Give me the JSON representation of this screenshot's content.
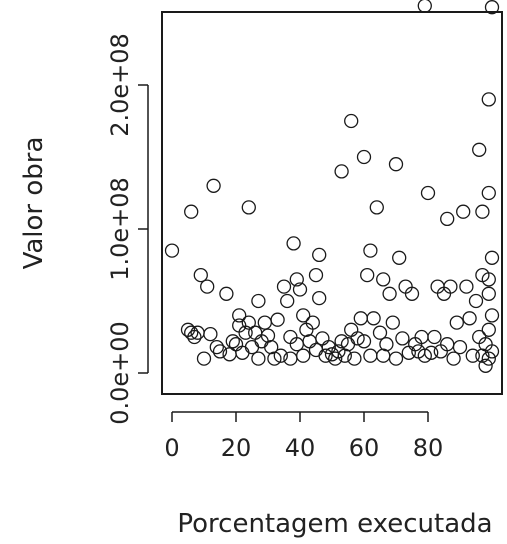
{
  "chart_data": {
    "type": "scatter",
    "title": "",
    "xlabel": "Porcentagem executada",
    "ylabel": "Valor obra",
    "xlim": [
      0,
      100
    ],
    "ylim": [
      0,
      270000000
    ],
    "x_ticks": [
      0,
      20,
      40,
      60,
      80
    ],
    "x_tick_labels": [
      "0",
      "20",
      "40",
      "60",
      "80"
    ],
    "y_ticks": [
      0,
      100000000,
      200000000
    ],
    "y_tick_labels": [
      "0.0e+00",
      "1.0e+08",
      "2.0e+08"
    ],
    "grid": false,
    "legend": "none",
    "marker": "open-circle",
    "colors": {
      "marker": "#1a1a1a",
      "axes": "#1a1a1a",
      "background": "#ffffff"
    },
    "points": [
      [
        0,
        85000000
      ],
      [
        5,
        30000000
      ],
      [
        6,
        28000000
      ],
      [
        6,
        112000000
      ],
      [
        7,
        25000000
      ],
      [
        8,
        28000000
      ],
      [
        9,
        68000000
      ],
      [
        10,
        10000000
      ],
      [
        11,
        60000000
      ],
      [
        12,
        27000000
      ],
      [
        13,
        130000000
      ],
      [
        14,
        18000000
      ],
      [
        15,
        15000000
      ],
      [
        17,
        55000000
      ],
      [
        18,
        13000000
      ],
      [
        19,
        22000000
      ],
      [
        20,
        20000000
      ],
      [
        21,
        40000000
      ],
      [
        21,
        33000000
      ],
      [
        22,
        14000000
      ],
      [
        23,
        28000000
      ],
      [
        24,
        35000000
      ],
      [
        24,
        115000000
      ],
      [
        25,
        18000000
      ],
      [
        26,
        28000000
      ],
      [
        27,
        50000000
      ],
      [
        27,
        10000000
      ],
      [
        28,
        22000000
      ],
      [
        29,
        35000000
      ],
      [
        30,
        26000000
      ],
      [
        31,
        18000000
      ],
      [
        32,
        10000000
      ],
      [
        33,
        37000000
      ],
      [
        34,
        12000000
      ],
      [
        35,
        60000000
      ],
      [
        36,
        50000000
      ],
      [
        37,
        25000000
      ],
      [
        37,
        10000000
      ],
      [
        38,
        90000000
      ],
      [
        39,
        20000000
      ],
      [
        39,
        65000000
      ],
      [
        40,
        58000000
      ],
      [
        41,
        40000000
      ],
      [
        41,
        12000000
      ],
      [
        42,
        30000000
      ],
      [
        43,
        22000000
      ],
      [
        44,
        35000000
      ],
      [
        45,
        68000000
      ],
      [
        45,
        16000000
      ],
      [
        46,
        52000000
      ],
      [
        46,
        82000000
      ],
      [
        47,
        24000000
      ],
      [
        48,
        12000000
      ],
      [
        49,
        18000000
      ],
      [
        50,
        13000000
      ],
      [
        51,
        10000000
      ],
      [
        52,
        15000000
      ],
      [
        53,
        22000000
      ],
      [
        53,
        140000000
      ],
      [
        54,
        12000000
      ],
      [
        55,
        20000000
      ],
      [
        56,
        30000000
      ],
      [
        56,
        175000000
      ],
      [
        57,
        10000000
      ],
      [
        58,
        24000000
      ],
      [
        59,
        38000000
      ],
      [
        60,
        150000000
      ],
      [
        60,
        22000000
      ],
      [
        61,
        68000000
      ],
      [
        62,
        85000000
      ],
      [
        62,
        12000000
      ],
      [
        63,
        38000000
      ],
      [
        64,
        115000000
      ],
      [
        65,
        28000000
      ],
      [
        66,
        65000000
      ],
      [
        66,
        12000000
      ],
      [
        67,
        20000000
      ],
      [
        68,
        55000000
      ],
      [
        69,
        35000000
      ],
      [
        70,
        145000000
      ],
      [
        70,
        10000000
      ],
      [
        71,
        80000000
      ],
      [
        72,
        24000000
      ],
      [
        73,
        60000000
      ],
      [
        74,
        14000000
      ],
      [
        75,
        55000000
      ],
      [
        76,
        20000000
      ],
      [
        77,
        15000000
      ],
      [
        78,
        25000000
      ],
      [
        79,
        12000000
      ],
      [
        79,
        255000000
      ],
      [
        80,
        125000000
      ],
      [
        81,
        14000000
      ],
      [
        82,
        25000000
      ],
      [
        83,
        60000000
      ],
      [
        84,
        15000000
      ],
      [
        85,
        55000000
      ],
      [
        86,
        20000000
      ],
      [
        86,
        107000000
      ],
      [
        87,
        60000000
      ],
      [
        88,
        10000000
      ],
      [
        89,
        35000000
      ],
      [
        90,
        18000000
      ],
      [
        91,
        112000000
      ],
      [
        92,
        60000000
      ],
      [
        93,
        38000000
      ],
      [
        94,
        12000000
      ],
      [
        95,
        50000000
      ],
      [
        96,
        25000000
      ],
      [
        96,
        155000000
      ],
      [
        97,
        12000000
      ],
      [
        97,
        112000000
      ],
      [
        97,
        68000000
      ],
      [
        98,
        20000000
      ],
      [
        98,
        5000000
      ],
      [
        99,
        30000000
      ],
      [
        99,
        55000000
      ],
      [
        99,
        65000000
      ],
      [
        99,
        125000000
      ],
      [
        99,
        190000000
      ],
      [
        99,
        10000000
      ],
      [
        100,
        254000000
      ],
      [
        100,
        40000000
      ],
      [
        100,
        80000000
      ],
      [
        100,
        15000000
      ]
    ]
  }
}
